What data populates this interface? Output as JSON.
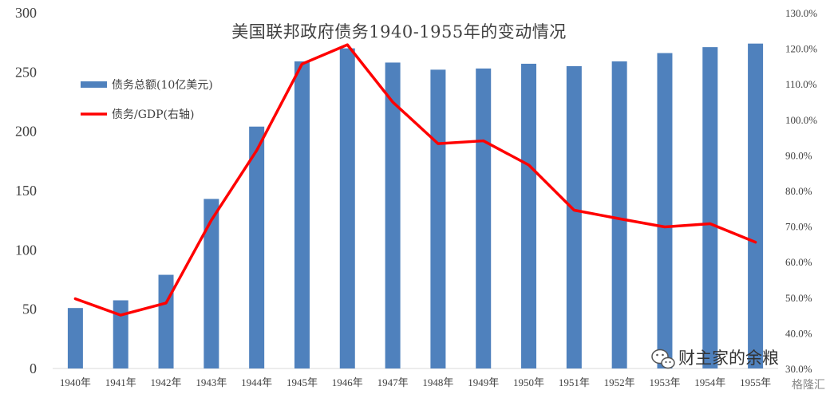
{
  "chart_data": {
    "type": "bar+line",
    "title": "美国联邦政府债务1940-1955年的变动情况",
    "categories": [
      "1940年",
      "1941年",
      "1942年",
      "1943年",
      "1944年",
      "1945年",
      "1946年",
      "1947年",
      "1948年",
      "1949年",
      "1950年",
      "1951年",
      "1952年",
      "1953年",
      "1954年",
      "1955年"
    ],
    "series": [
      {
        "name": "债务总额(10亿美元)",
        "type": "bar",
        "axis": "left",
        "color": "#4f81bd",
        "values": [
          51,
          57.5,
          79,
          143,
          204,
          259,
          270,
          258,
          252,
          253,
          257,
          255,
          259,
          266,
          271,
          274
        ]
      },
      {
        "name": "债务/GDP(右轴)",
        "type": "line",
        "axis": "right",
        "color": "#ff0000",
        "values": [
          49.6,
          45.0,
          48.4,
          71.7,
          91.3,
          115.6,
          121.0,
          104.9,
          93.2,
          94.0,
          87.2,
          74.5,
          72.1,
          69.8,
          70.7,
          65.5
        ]
      }
    ],
    "y_left": {
      "ylim": [
        0,
        300
      ],
      "ticks": [
        "0",
        "50",
        "100",
        "150",
        "200",
        "250",
        "300"
      ]
    },
    "y_right": {
      "ylim": [
        30,
        130
      ],
      "ticks": [
        "30.0%",
        "40.0%",
        "50.0%",
        "60.0%",
        "70.0%",
        "80.0%",
        "90.0%",
        "100.0%",
        "110.0%",
        "120.0%",
        "130.0%"
      ]
    },
    "grid": false,
    "legend": "top-left"
  },
  "watermark": {
    "text": "财主家的余粮",
    "corner_text": "格隆汇",
    "icon": "wechat-icon"
  }
}
